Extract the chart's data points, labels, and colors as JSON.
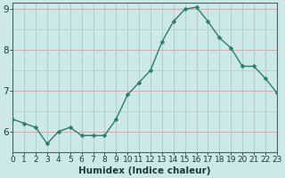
{
  "x": [
    0,
    1,
    2,
    3,
    4,
    5,
    6,
    7,
    8,
    9,
    10,
    11,
    12,
    13,
    14,
    15,
    16,
    17,
    18,
    19,
    20,
    21,
    22,
    23
  ],
  "y": [
    6.3,
    6.2,
    6.1,
    5.7,
    6.0,
    6.1,
    5.9,
    5.9,
    5.9,
    6.3,
    6.9,
    7.2,
    7.5,
    8.2,
    8.7,
    9.0,
    9.05,
    8.7,
    8.3,
    8.05,
    7.6,
    7.6,
    7.3,
    6.95
  ],
  "line_color": "#2d7d6e",
  "marker": "D",
  "marker_size": 2.5,
  "bg_color": "#cce8e8",
  "grid_color_v": "#aed0d0",
  "grid_color_h": "#c8b0b0",
  "xlabel": "Humidex (Indice chaleur)",
  "xlim": [
    0,
    23
  ],
  "ylim": [
    5.5,
    9.15
  ],
  "yticks": [
    6,
    7,
    8,
    9
  ],
  "xticks": [
    0,
    1,
    2,
    3,
    4,
    5,
    6,
    7,
    8,
    9,
    10,
    11,
    12,
    13,
    14,
    15,
    16,
    17,
    18,
    19,
    20,
    21,
    22,
    23
  ],
  "tick_fontsize": 6.5,
  "xlabel_fontsize": 7.5,
  "line_width": 1.0
}
